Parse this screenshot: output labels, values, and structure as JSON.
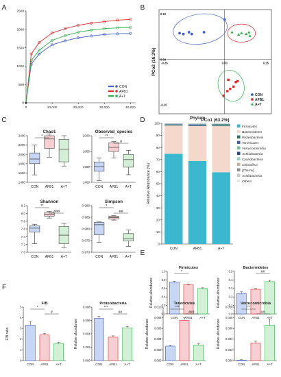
{
  "colors": {
    "con": "#3f5fc8",
    "afb1": "#e02a2a",
    "at": "#2fb34a",
    "con_fill": "#c7d6f4",
    "afb1_fill": "#f7cfd2",
    "at_fill": "#d3efd6"
  },
  "panel_letters": [
    "A",
    "B",
    "C",
    "D",
    "E",
    "F"
  ],
  "groups": [
    "CON",
    "AFB1",
    "A+T"
  ],
  "chart_data": [
    {
      "id": "A",
      "type": "line",
      "x": [
        0,
        2000,
        5000,
        10000,
        15000,
        20000,
        25000,
        30000,
        35000,
        40000
      ],
      "series": [
        {
          "name": "CON",
          "values": [
            0,
            1050,
            1330,
            1580,
            1690,
            1770,
            1820,
            1860,
            1880,
            1890
          ]
        },
        {
          "name": "AFB1",
          "values": [
            0,
            1330,
            1640,
            1900,
            2020,
            2110,
            2170,
            2210,
            2250,
            2270
          ]
        },
        {
          "name": "A+T",
          "values": [
            0,
            1150,
            1430,
            1700,
            1830,
            1920,
            1980,
            2020,
            2040,
            2050
          ]
        }
      ],
      "xticks": [
        "0",
        "10,000",
        "20,000",
        "30,000",
        "40,000"
      ],
      "yticks": [
        "0",
        "500",
        "1000",
        "1500",
        "2000",
        "2500"
      ],
      "xlim": [
        0,
        42000
      ],
      "ylim": [
        0,
        2500
      ],
      "legend": "bottom-right"
    },
    {
      "id": "B",
      "type": "box",
      "subplots": [
        {
          "title": "Chao1",
          "ylim": [
            1400,
            2400
          ],
          "yticks": [
            "1400",
            "1600",
            "1800",
            "2000",
            "2200",
            "2400"
          ],
          "boxes": [
            {
              "min": 1560,
              "q1": 1800,
              "med": 1900,
              "q3": 2030,
              "max": 2200
            },
            {
              "min": 1940,
              "q1": 2130,
              "med": 2330,
              "q3": 2400,
              "max": 2440
            },
            {
              "min": 1750,
              "q1": 1840,
              "med": 2110,
              "q3": 2320,
              "max": 2400
            }
          ],
          "sig": [
            {
              "a": 0,
              "b": 1,
              "label": "*"
            }
          ]
        },
        {
          "title": "Observed_species",
          "ylim": [
            1300,
            2100
          ],
          "yticks": [
            "1400",
            "1600",
            "1800",
            "2000"
          ],
          "boxes": [
            {
              "min": 1330,
              "q1": 1490,
              "med": 1570,
              "q3": 1650,
              "max": 1720
            },
            {
              "min": 1720,
              "q1": 1830,
              "med": 1900,
              "q3": 1980,
              "max": 2000
            },
            {
              "min": 1430,
              "q1": 1560,
              "med": 1690,
              "q3": 1780,
              "max": 1850
            }
          ],
          "sig": [
            {
              "a": 0,
              "b": 1,
              "label": "**"
            },
            {
              "a": 1,
              "b": 2,
              "label": "#"
            }
          ]
        },
        {
          "title": "Shannon",
          "ylim": [
            7.0,
            8.2
          ],
          "yticks": [
            "7.0",
            "7.2",
            "7.4",
            "7.6",
            "7.8",
            "8.0",
            "8.2"
          ],
          "boxes": [
            {
              "min": 7.22,
              "q1": 7.52,
              "med": 7.62,
              "q3": 7.68,
              "max": 7.72
            },
            {
              "min": 7.88,
              "q1": 7.93,
              "med": 7.98,
              "q3": 8.02,
              "max": 8.05
            },
            {
              "min": 7.12,
              "q1": 7.22,
              "med": 7.44,
              "q3": 7.66,
              "max": 7.75
            }
          ],
          "sig": [
            {
              "a": 0,
              "b": 1,
              "label": "**"
            },
            {
              "a": 1,
              "b": 2,
              "label": "###"
            }
          ]
        },
        {
          "title": "Simpson",
          "ylim": [
            0.97,
            0.99
          ],
          "yticks": [
            "0.970",
            "0.975",
            "0.980",
            "0.985",
            "0.990"
          ],
          "boxes": [
            {
              "min": 0.9742,
              "q1": 0.9775,
              "med": 0.9818,
              "q3": 0.9828,
              "max": 0.983
            },
            {
              "min": 0.9838,
              "q1": 0.9842,
              "med": 0.9848,
              "q3": 0.9855,
              "max": 0.9857
            },
            {
              "min": 0.9725,
              "q1": 0.9748,
              "med": 0.9758,
              "q3": 0.978,
              "max": 0.9795
            }
          ],
          "sig": [
            {
              "a": 0,
              "b": 1,
              "label": "*"
            },
            {
              "a": 1,
              "b": 2,
              "label": "##"
            }
          ]
        }
      ]
    },
    {
      "id": "C",
      "type": "scatter",
      "xlabel": "PCo1 (63.2%)",
      "ylabel": "PCo2 (16.3%)",
      "xticks": [
        "-0.35",
        "0.00",
        "0.25"
      ],
      "yticks": [
        "0.10",
        "0.00",
        "-0.10"
      ],
      "xlim": [
        -0.35,
        0.25
      ],
      "ylim": [
        -0.12,
        0.11
      ],
      "legend": "bottom-right",
      "series": [
        {
          "name": "CON",
          "points": [
            [
              -0.24,
              0.058
            ],
            [
              -0.22,
              0.056
            ],
            [
              -0.19,
              0.06
            ],
            [
              -0.175,
              0.056
            ],
            [
              -0.11,
              0.06
            ],
            [
              -0.0,
              0.088
            ]
          ]
        },
        {
          "name": "AFB1",
          "points": [
            [
              0.02,
              -0.045
            ],
            [
              0.06,
              -0.05
            ],
            [
              0.07,
              -0.048
            ],
            [
              0.048,
              -0.06
            ],
            [
              0.03,
              -0.065
            ],
            [
              0.015,
              -0.07
            ],
            [
              -0.005,
              -0.08
            ]
          ]
        },
        {
          "name": "A+T",
          "points": [
            [
              0.04,
              0.06
            ],
            [
              0.075,
              0.055
            ],
            [
              0.09,
              0.058
            ],
            [
              0.115,
              0.056
            ],
            [
              0.13,
              0.06
            ],
            [
              0.135,
              0.052
            ]
          ]
        }
      ]
    },
    {
      "id": "D",
      "type": "bar",
      "stacked": true,
      "title": "Phylum",
      "ylabel": "Relative Abundance (%)",
      "yticks": [
        "0",
        "10",
        "20",
        "30",
        "40",
        "50",
        "60",
        "70",
        "80",
        "90",
        "100"
      ],
      "ylim": [
        0,
        100
      ],
      "legend": "right",
      "series": [
        {
          "name": "Firmicutes",
          "color": "#3bb8cf",
          "values": [
            74.8,
            68.8,
            59.5
          ]
        },
        {
          "name": "Bacteroidetes",
          "color": "#f4d8cc",
          "values": [
            23.5,
            29.0,
            38.2
          ]
        },
        {
          "name": "Proteobacteria",
          "color": "#2d6f63",
          "values": [
            0.6,
            0.4,
            0.5
          ]
        },
        {
          "name": "Tenericutes",
          "color": "#4a5da8",
          "values": [
            0.3,
            0.8,
            0.3
          ]
        },
        {
          "name": "Verrucomicrobia",
          "color": "#6fbf9a",
          "values": [
            0.2,
            0.3,
            0.7
          ]
        },
        {
          "name": "Actinobacteria",
          "color": "#2b4a80",
          "values": [
            0.2,
            0.2,
            0.3
          ]
        },
        {
          "name": "Cyanobacteria",
          "color": "#97d0c4",
          "values": [
            0.1,
            0.2,
            0.2
          ]
        },
        {
          "name": "Chloroflexi",
          "color": "#c3b199",
          "values": [
            0.1,
            0.1,
            0.1
          ]
        },
        {
          "name": "[Thermi]",
          "color": "#8d8d8d",
          "values": [
            0.1,
            0.1,
            0.1
          ]
        },
        {
          "name": "Acidobacteria",
          "color": "#c9c9c9",
          "values": [
            0.05,
            0.05,
            0.05
          ]
        },
        {
          "name": "Others",
          "color": "#e8e8e8",
          "values": [
            0.05,
            0.05,
            0.05
          ]
        }
      ]
    },
    {
      "id": "E",
      "type": "bar",
      "ylabel": "Relative abundance",
      "subplots": [
        {
          "title": "Firmicutes",
          "ylim": [
            0,
            1.0
          ],
          "yticks": [
            "0.0",
            "0.2",
            "0.4",
            "0.6",
            "0.8",
            "1.0"
          ],
          "values": [
            0.75,
            0.69,
            0.6
          ],
          "errors": [
            0.02,
            0.015,
            0.015
          ],
          "sig": [
            {
              "a": 0,
              "b": 1,
              "label": "*"
            }
          ]
        },
        {
          "title": "Bacteroidetes",
          "ylim": [
            0,
            0.5
          ],
          "yticks": [
            "0.0",
            "0.1",
            "0.2",
            "0.3",
            "0.4",
            "0.5"
          ],
          "values": [
            0.24,
            0.29,
            0.38
          ],
          "errors": [
            0.02,
            0.01,
            0.015
          ],
          "sig": [
            {
              "a": 1,
              "b": 2,
              "label": "##"
            }
          ]
        }
      ]
    },
    {
      "id": "F",
      "type": "bar",
      "subplots": [
        {
          "title": "F/B",
          "ylabel": "F/B ratio",
          "ylim": [
            0,
            5
          ],
          "yticks": [
            "0",
            "1",
            "2",
            "3",
            "4",
            "5"
          ],
          "values": [
            3.3,
            2.4,
            1.6
          ],
          "errors": [
            0.35,
            0.12,
            0.1
          ],
          "sig": [
            {
              "a": 0,
              "b": 1,
              "label": "*"
            },
            {
              "a": 1,
              "b": 2,
              "label": "#"
            }
          ]
        },
        {
          "title": "Proteobacteria",
          "ylabel": "Relative abundance",
          "ylim": [
            0,
            0.008
          ],
          "yticks": [
            "0.000",
            "0.002",
            "0.004",
            "0.006",
            "0.008"
          ],
          "values": [
            0.0063,
            0.0035,
            0.0049
          ],
          "errors": [
            0.0003,
            0.0002,
            0.0002
          ],
          "sig": [
            {
              "a": 0,
              "b": 1,
              "label": "***"
            },
            {
              "a": 1,
              "b": 2,
              "label": "##"
            }
          ]
        },
        {
          "title": "Tenericutes",
          "ylabel": "Relative abundance",
          "ylim": [
            0,
            0.01
          ],
          "yticks": [
            "0.000",
            "0.002",
            "0.004",
            "0.006",
            "0.008",
            "0.010"
          ],
          "values": [
            0.0027,
            0.0075,
            0.0029
          ],
          "errors": [
            0.0002,
            0.0005,
            0.0003
          ],
          "sig": [
            {
              "a": 0,
              "b": 1,
              "label": "***"
            },
            {
              "a": 1,
              "b": 2,
              "label": "###"
            }
          ]
        },
        {
          "title": "Verrucomicrobia",
          "ylabel": "Relative abundance",
          "ylim": [
            0,
            0.01
          ],
          "yticks": [
            "0.000",
            "0.002",
            "0.004",
            "0.006",
            "0.008",
            "0.010"
          ],
          "values": [
            0.0001,
            0.0033,
            0.0066
          ],
          "errors": [
            5e-05,
            0.0003,
            0.0012
          ],
          "sig": [
            {
              "a": 0,
              "b": 1,
              "label": "**"
            },
            {
              "a": 1,
              "b": 2,
              "label": "##"
            }
          ]
        }
      ]
    }
  ]
}
